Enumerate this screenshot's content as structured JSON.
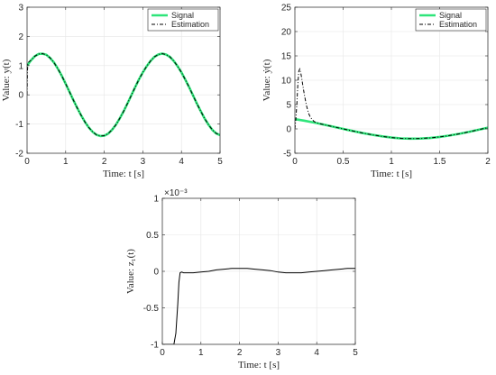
{
  "chart_data": [
    {
      "type": "line",
      "xlabel": "Time: t [s]",
      "ylabel": "Value: y(t)",
      "xlim": [
        0,
        5
      ],
      "ylim": [
        -2,
        3
      ],
      "xticks": [
        0,
        1,
        2,
        3,
        4,
        5
      ],
      "yticks": [
        -2,
        -1,
        0,
        1,
        2,
        3
      ],
      "grid": true,
      "legend_position": "top-right",
      "series": [
        {
          "name": "Signal",
          "color": "#2ee57a",
          "style": "solid",
          "x": [
            0,
            0.1,
            0.2,
            0.3,
            0.4,
            0.5,
            0.6,
            0.7,
            0.8,
            0.9,
            1.0,
            1.1,
            1.2,
            1.3,
            1.4,
            1.5,
            1.6,
            1.7,
            1.8,
            1.9,
            2.0,
            2.1,
            2.2,
            2.3,
            2.4,
            2.5,
            2.6,
            2.7,
            2.8,
            2.9,
            3.0,
            3.1,
            3.2,
            3.3,
            3.4,
            3.5,
            3.6,
            3.7,
            3.8,
            3.9,
            4.0,
            4.1,
            4.2,
            4.3,
            4.4,
            4.5,
            4.6,
            4.7,
            4.8,
            4.9,
            5.0
          ],
          "y": [
            1.0,
            1.18,
            1.32,
            1.4,
            1.41,
            1.37,
            1.26,
            1.1,
            0.89,
            0.65,
            0.38,
            0.1,
            -0.18,
            -0.45,
            -0.7,
            -0.93,
            -1.12,
            -1.27,
            -1.37,
            -1.41,
            -1.4,
            -1.33,
            -1.2,
            -1.03,
            -0.81,
            -0.57,
            -0.3,
            -0.02,
            0.26,
            0.53,
            0.77,
            0.98,
            1.16,
            1.3,
            1.38,
            1.41,
            1.38,
            1.3,
            1.16,
            0.98,
            0.77,
            0.52,
            0.26,
            -0.02,
            -0.3,
            -0.56,
            -0.81,
            -1.02,
            -1.2,
            -1.32,
            -1.38
          ]
        },
        {
          "name": "Estimation",
          "color": "#000000",
          "style": "dashdot",
          "x": [
            0,
            0.005,
            0.01,
            0.02,
            0.04,
            0.06,
            0.08,
            0.1,
            0.2,
            0.3,
            0.4,
            0.5,
            0.6,
            0.7,
            0.8,
            0.9,
            1.0,
            1.1,
            1.2,
            1.3,
            1.4,
            1.5,
            1.6,
            1.7,
            1.8,
            1.9,
            2.0,
            2.1,
            2.2,
            2.3,
            2.4,
            2.5,
            2.6,
            2.7,
            2.8,
            2.9,
            3.0,
            3.1,
            3.2,
            3.3,
            3.4,
            3.5,
            3.6,
            3.7,
            3.8,
            3.9,
            4.0,
            4.1,
            4.2,
            4.3,
            4.4,
            4.5,
            4.6,
            4.7,
            4.8,
            4.9,
            5.0
          ],
          "y": [
            0.0,
            0.4,
            0.8,
            1.05,
            1.12,
            1.14,
            1.16,
            1.18,
            1.32,
            1.4,
            1.41,
            1.37,
            1.26,
            1.1,
            0.89,
            0.65,
            0.38,
            0.1,
            -0.18,
            -0.45,
            -0.7,
            -0.93,
            -1.12,
            -1.27,
            -1.37,
            -1.41,
            -1.4,
            -1.33,
            -1.2,
            -1.03,
            -0.81,
            -0.57,
            -0.3,
            -0.02,
            0.26,
            0.53,
            0.77,
            0.98,
            1.16,
            1.3,
            1.38,
            1.41,
            1.38,
            1.3,
            1.16,
            0.98,
            0.77,
            0.52,
            0.26,
            -0.02,
            -0.3,
            -0.56,
            -0.81,
            -1.02,
            -1.2,
            -1.32,
            -1.38
          ]
        }
      ]
    },
    {
      "type": "line",
      "xlabel": "Time: t [s]",
      "ylabel": "Value: ẏ(t)",
      "xlim": [
        0,
        2
      ],
      "ylim": [
        -5,
        25
      ],
      "xticks": [
        0,
        0.5,
        1,
        1.5,
        2
      ],
      "xtick_labels": [
        "0",
        "0.5",
        "1",
        "1.5",
        "2"
      ],
      "yticks": [
        -5,
        0,
        5,
        10,
        15,
        20,
        25
      ],
      "grid": true,
      "legend_position": "top-right",
      "series": [
        {
          "name": "Signal",
          "color": "#2ee57a",
          "style": "solid",
          "x": [
            0,
            0.1,
            0.2,
            0.3,
            0.4,
            0.5,
            0.6,
            0.7,
            0.8,
            0.9,
            1.0,
            1.1,
            1.2,
            1.3,
            1.4,
            1.5,
            1.6,
            1.7,
            1.8,
            1.9,
            2.0
          ],
          "y": [
            2.0,
            1.68,
            1.3,
            0.88,
            0.44,
            0.0,
            -0.43,
            -0.84,
            -1.2,
            -1.52,
            -1.77,
            -1.95,
            -2.0,
            -1.97,
            -1.86,
            -1.65,
            -1.37,
            -1.02,
            -0.62,
            -0.18,
            0.25
          ]
        },
        {
          "name": "Estimation",
          "color": "#000000",
          "style": "dashdot",
          "x": [
            0,
            0.01,
            0.02,
            0.03,
            0.04,
            0.05,
            0.06,
            0.07,
            0.08,
            0.1,
            0.12,
            0.14,
            0.16,
            0.18,
            0.2,
            0.25,
            0.3,
            0.4,
            0.5,
            0.6,
            0.7,
            0.8,
            0.9,
            1.0,
            1.1,
            1.2,
            1.3,
            1.4,
            1.5,
            1.6,
            1.7,
            1.8,
            1.9,
            2.0
          ],
          "y": [
            0.0,
            2.0,
            5.0,
            9.0,
            11.8,
            12.3,
            11.6,
            10.5,
            9.2,
            6.8,
            4.8,
            3.3,
            2.4,
            1.9,
            1.5,
            1.1,
            0.88,
            0.44,
            0.0,
            -0.43,
            -0.84,
            -1.2,
            -1.52,
            -1.77,
            -1.95,
            -2.0,
            -1.97,
            -1.86,
            -1.65,
            -1.37,
            -1.02,
            -0.62,
            -0.18,
            0.25
          ]
        }
      ]
    },
    {
      "type": "line",
      "xlabel": "Time: t [s]",
      "ylabel": "Value: z₁(t)",
      "exponent_label": "×10⁻³",
      "xlim": [
        0,
        5
      ],
      "ylim": [
        -1,
        1
      ],
      "xticks": [
        0,
        1,
        2,
        3,
        4,
        5
      ],
      "yticks": [
        -1,
        -0.5,
        0,
        0.5,
        1
      ],
      "ytick_labels": [
        "-1",
        "-0.5",
        "0",
        "0.5",
        "1"
      ],
      "grid": true,
      "series": [
        {
          "color": "#000000",
          "style": "solid",
          "x": [
            0.0,
            0.02,
            0.05,
            0.1,
            0.2,
            0.3,
            0.35,
            0.4,
            0.43,
            0.46,
            0.5,
            0.55,
            0.6,
            0.8,
            1.0,
            1.2,
            1.4,
            1.6,
            1.8,
            2.0,
            2.2,
            2.4,
            2.6,
            2.8,
            3.0,
            3.2,
            3.4,
            3.6,
            3.8,
            4.0,
            4.2,
            4.4,
            4.6,
            4.8,
            5.0
          ],
          "y": [
            -1,
            -1,
            -1,
            -1,
            -1,
            -1,
            -0.85,
            -0.45,
            -0.15,
            -0.02,
            -0.01,
            -0.02,
            -0.02,
            -0.02,
            -0.01,
            0.0,
            0.02,
            0.03,
            0.04,
            0.04,
            0.04,
            0.03,
            0.02,
            0.01,
            -0.01,
            -0.02,
            -0.02,
            -0.02,
            -0.01,
            0.0,
            0.01,
            0.02,
            0.03,
            0.04,
            0.04
          ]
        }
      ]
    }
  ]
}
